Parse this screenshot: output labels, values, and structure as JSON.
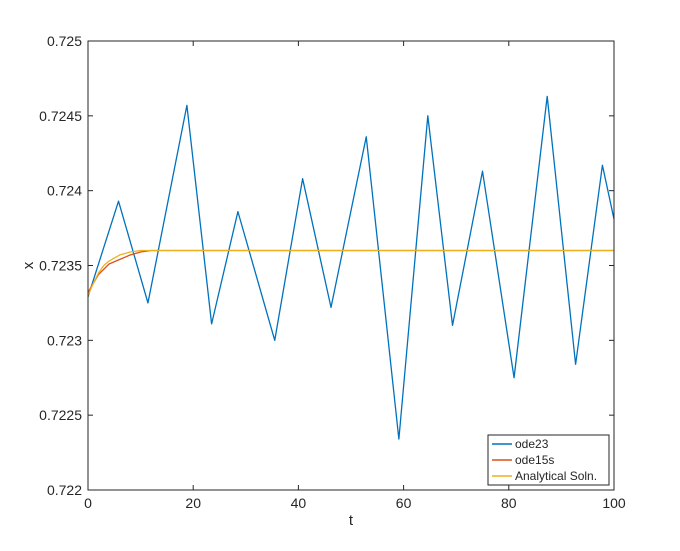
{
  "chart_data": {
    "type": "line",
    "title": "",
    "xlabel": "t",
    "ylabel": "x",
    "xlim": [
      0,
      100
    ],
    "ylim": [
      0.722,
      0.725
    ],
    "xticks": [
      0,
      20,
      40,
      60,
      80,
      100
    ],
    "xtick_labels": [
      "0",
      "20",
      "40",
      "60",
      "80",
      "100"
    ],
    "yticks": [
      0.722,
      0.7225,
      0.723,
      0.7235,
      0.724,
      0.7245,
      0.725
    ],
    "ytick_labels": [
      "0.722",
      "0.7225",
      "0.723",
      "0.7235",
      "0.724",
      "0.7245",
      "0.725"
    ],
    "grid": false,
    "legend_position": "bottom-right",
    "series": [
      {
        "name": "ode23",
        "color": "#0072BD",
        "x": [
          0,
          5.8,
          11.4,
          18.8,
          23.5,
          28.5,
          35.5,
          40.8,
          46.2,
          52.9,
          59.1,
          64.6,
          69.3,
          75.0,
          81.0,
          87.3,
          92.7,
          97.8,
          100
        ],
        "y": [
          0.72329,
          0.72393,
          0.72325,
          0.72457,
          0.72311,
          0.72386,
          0.723,
          0.72408,
          0.72322,
          0.72436,
          0.72234,
          0.7245,
          0.7231,
          0.72413,
          0.72275,
          0.72463,
          0.72284,
          0.72417,
          0.72381
        ]
      },
      {
        "name": "ode15s",
        "color": "#D95319",
        "x": [
          0,
          1,
          2,
          4,
          6,
          8,
          10,
          12,
          15,
          20,
          30,
          40,
          50,
          60,
          70,
          80,
          90,
          100
        ],
        "y": [
          0.72332,
          0.72338,
          0.72344,
          0.72351,
          0.72354,
          0.72357,
          0.72359,
          0.7236,
          0.7236,
          0.7236,
          0.7236,
          0.7236,
          0.7236,
          0.7236,
          0.7236,
          0.7236,
          0.7236,
          0.7236
        ]
      },
      {
        "name": "Analytical Soln.",
        "color": "#EDB120",
        "x": [
          0,
          0.5,
          1,
          2,
          3,
          4,
          5,
          6,
          8,
          10,
          12,
          15,
          20,
          30,
          40,
          50,
          60,
          70,
          80,
          90,
          100
        ],
        "y": [
          0.7233,
          0.72334,
          0.72338,
          0.72345,
          0.7235,
          0.72353,
          0.72355,
          0.72357,
          0.72359,
          0.7236,
          0.7236,
          0.7236,
          0.7236,
          0.7236,
          0.7236,
          0.7236,
          0.7236,
          0.7236,
          0.7236,
          0.7236,
          0.7236
        ]
      }
    ]
  }
}
